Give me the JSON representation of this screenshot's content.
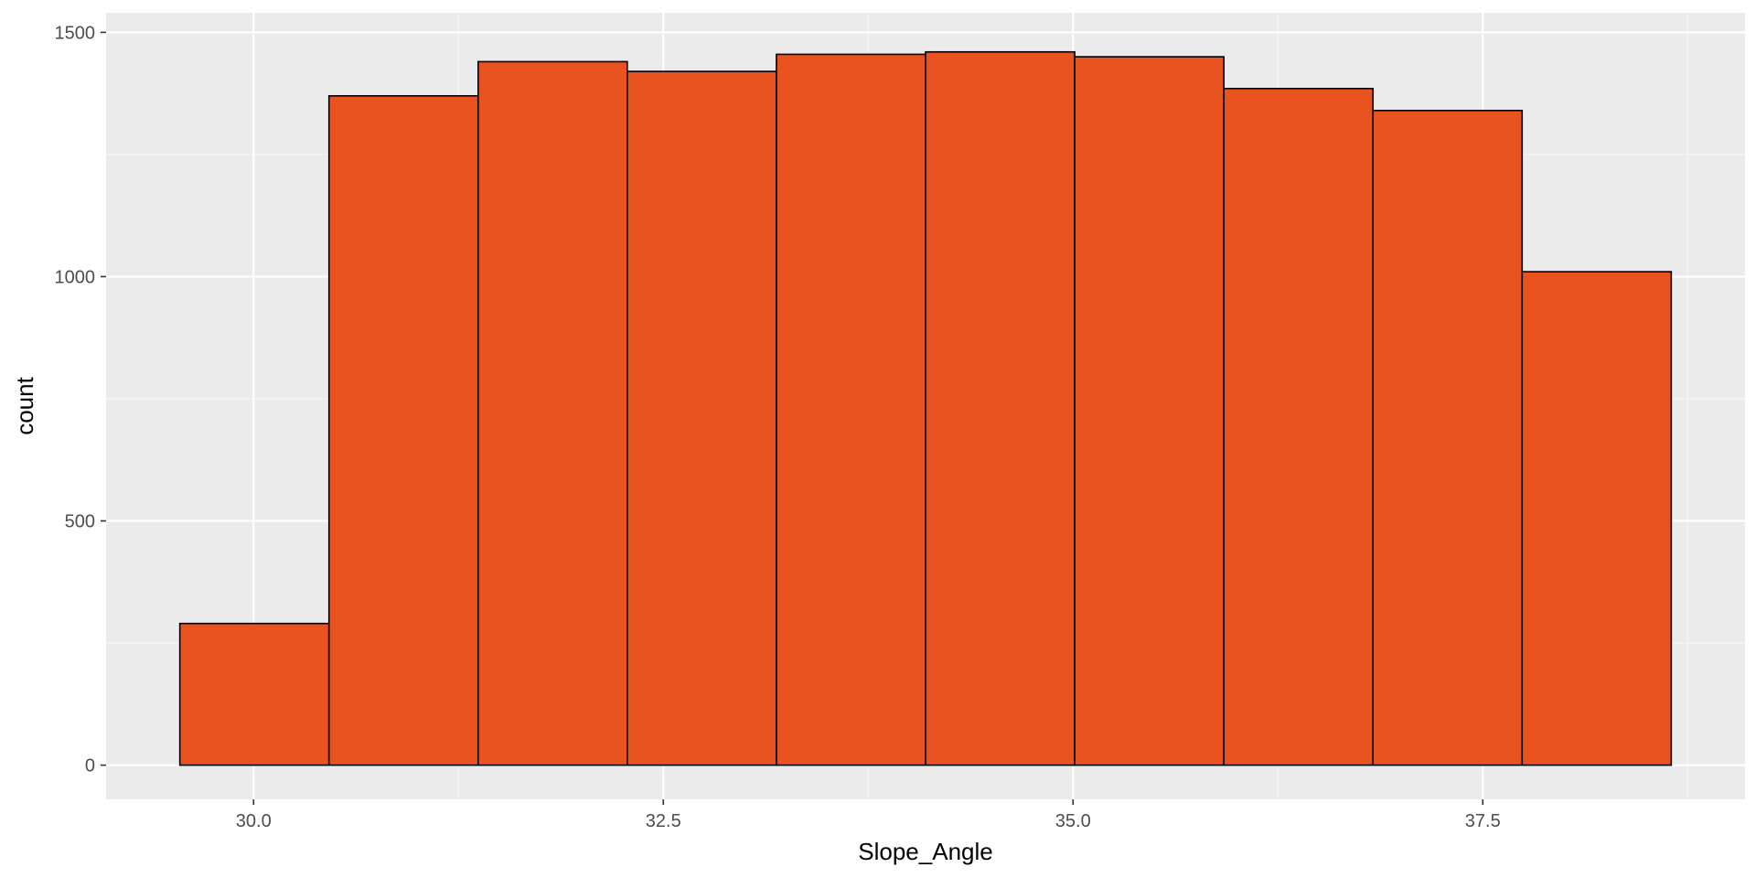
{
  "chart_data": {
    "type": "bar",
    "title": "",
    "xlabel": "Slope_Angle",
    "ylabel": "count",
    "bin_edges": [
      29.55,
      30.46,
      31.37,
      32.28,
      33.19,
      34.1,
      35.01,
      35.92,
      36.83,
      37.74,
      38.65
    ],
    "values": [
      290,
      1370,
      1440,
      1420,
      1455,
      1460,
      1450,
      1385,
      1340,
      1010
    ],
    "xlim": [
      29.1,
      39.1
    ],
    "ylim": [
      -70,
      1540
    ],
    "x_ticks": [
      30.0,
      32.5,
      35.0,
      37.5
    ],
    "x_tick_labels": [
      "30.0",
      "32.5",
      "35.0",
      "37.5"
    ],
    "y_ticks": [
      0,
      500,
      1000,
      1500
    ],
    "y_tick_labels": [
      "0",
      "500",
      "1000",
      "1500"
    ],
    "grid": true,
    "colors": {
      "panel_background": "#ebebeb",
      "grid_major": "#ffffff",
      "grid_minor": "#f5f5f5",
      "bar_fill": "#e8531f",
      "bar_outline": "#000000"
    }
  }
}
